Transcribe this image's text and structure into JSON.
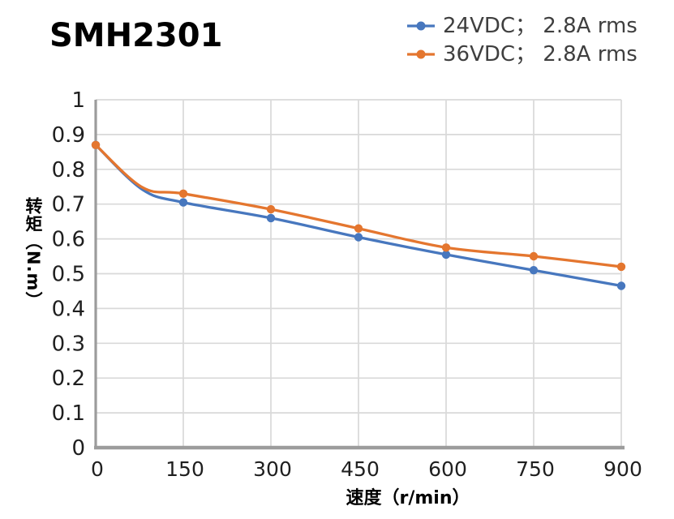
{
  "chart_data": {
    "type": "line",
    "title": "SMH2301",
    "xlabel": "速度（r/min）",
    "ylabel": "转矩（N.m）",
    "x": [
      0,
      150,
      300,
      450,
      600,
      750,
      900
    ],
    "series": [
      {
        "name": "24VDC； 2.8A rms",
        "color": "#4777BE",
        "values": [
          0.87,
          0.705,
          0.66,
          0.605,
          0.555,
          0.51,
          0.465
        ]
      },
      {
        "name": "36VDC； 2.8A rms",
        "color": "#E4762F",
        "values": [
          0.87,
          0.73,
          0.685,
          0.63,
          0.575,
          0.55,
          0.52
        ]
      }
    ],
    "curve_knee_hint": {
      "x": 80,
      "values": [
        0.742,
        0.748
      ]
    },
    "xlim": [
      0,
      900
    ],
    "ylim": [
      0,
      1
    ],
    "xtick_step": 150,
    "ytick_step": 0.1,
    "x_ticks": [
      "0",
      "150",
      "300",
      "450",
      "600",
      "750",
      "900"
    ],
    "y_ticks": [
      "0",
      "0.1",
      "0.2",
      "0.3",
      "0.4",
      "0.5",
      "0.6",
      "0.7",
      "0.8",
      "0.9",
      "1"
    ],
    "grid": true,
    "legend_position": "top-right",
    "marker": "circle",
    "colors": {
      "grid": "#D9D9D9",
      "axis": "#9C9C9C",
      "tick_label": "#1F1F1F",
      "legend_text": "#3F3F3F",
      "title": "#000000"
    }
  }
}
